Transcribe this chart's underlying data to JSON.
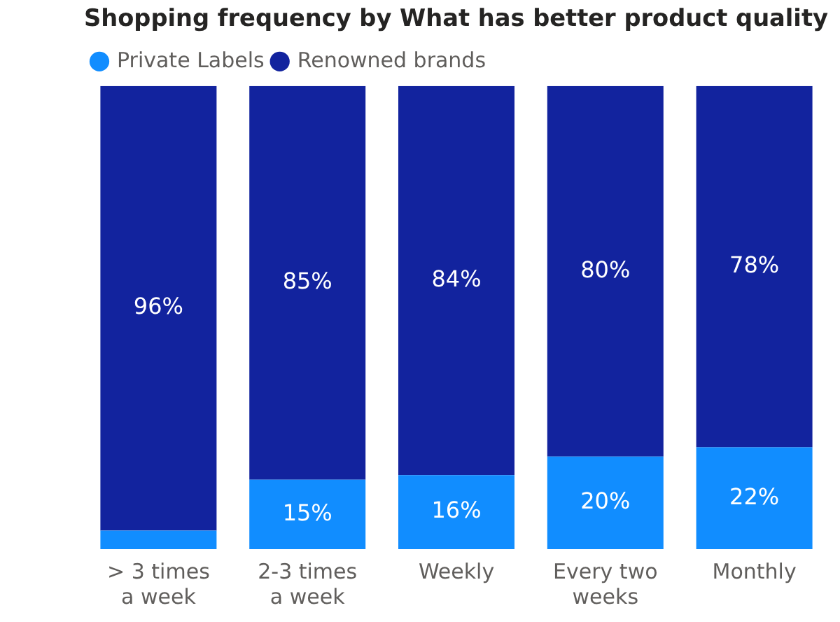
{
  "chart_data": {
    "type": "bar",
    "title": "Shopping frequency by What has better product quality",
    "categories": [
      "> 3 times a week",
      "2-3 times a week",
      "Weekly",
      "Every two weeks",
      "Monthly"
    ],
    "stacked": true,
    "ylim": [
      0,
      100
    ],
    "tick_labels": "x",
    "grid": false,
    "legend": "top left",
    "series": [
      {
        "name": "Private Labels",
        "color": "#118dff",
        "values": [
          4,
          15,
          16,
          20,
          22
        ],
        "value_labels": [
          null,
          "15%",
          "16%",
          "20%",
          "22%"
        ]
      },
      {
        "name": "Renowned brands",
        "color": "#12239e",
        "values": [
          96,
          85,
          84,
          80,
          78
        ],
        "value_labels": [
          "96%",
          "85%",
          "84%",
          "80%",
          "78%"
        ]
      }
    ]
  }
}
